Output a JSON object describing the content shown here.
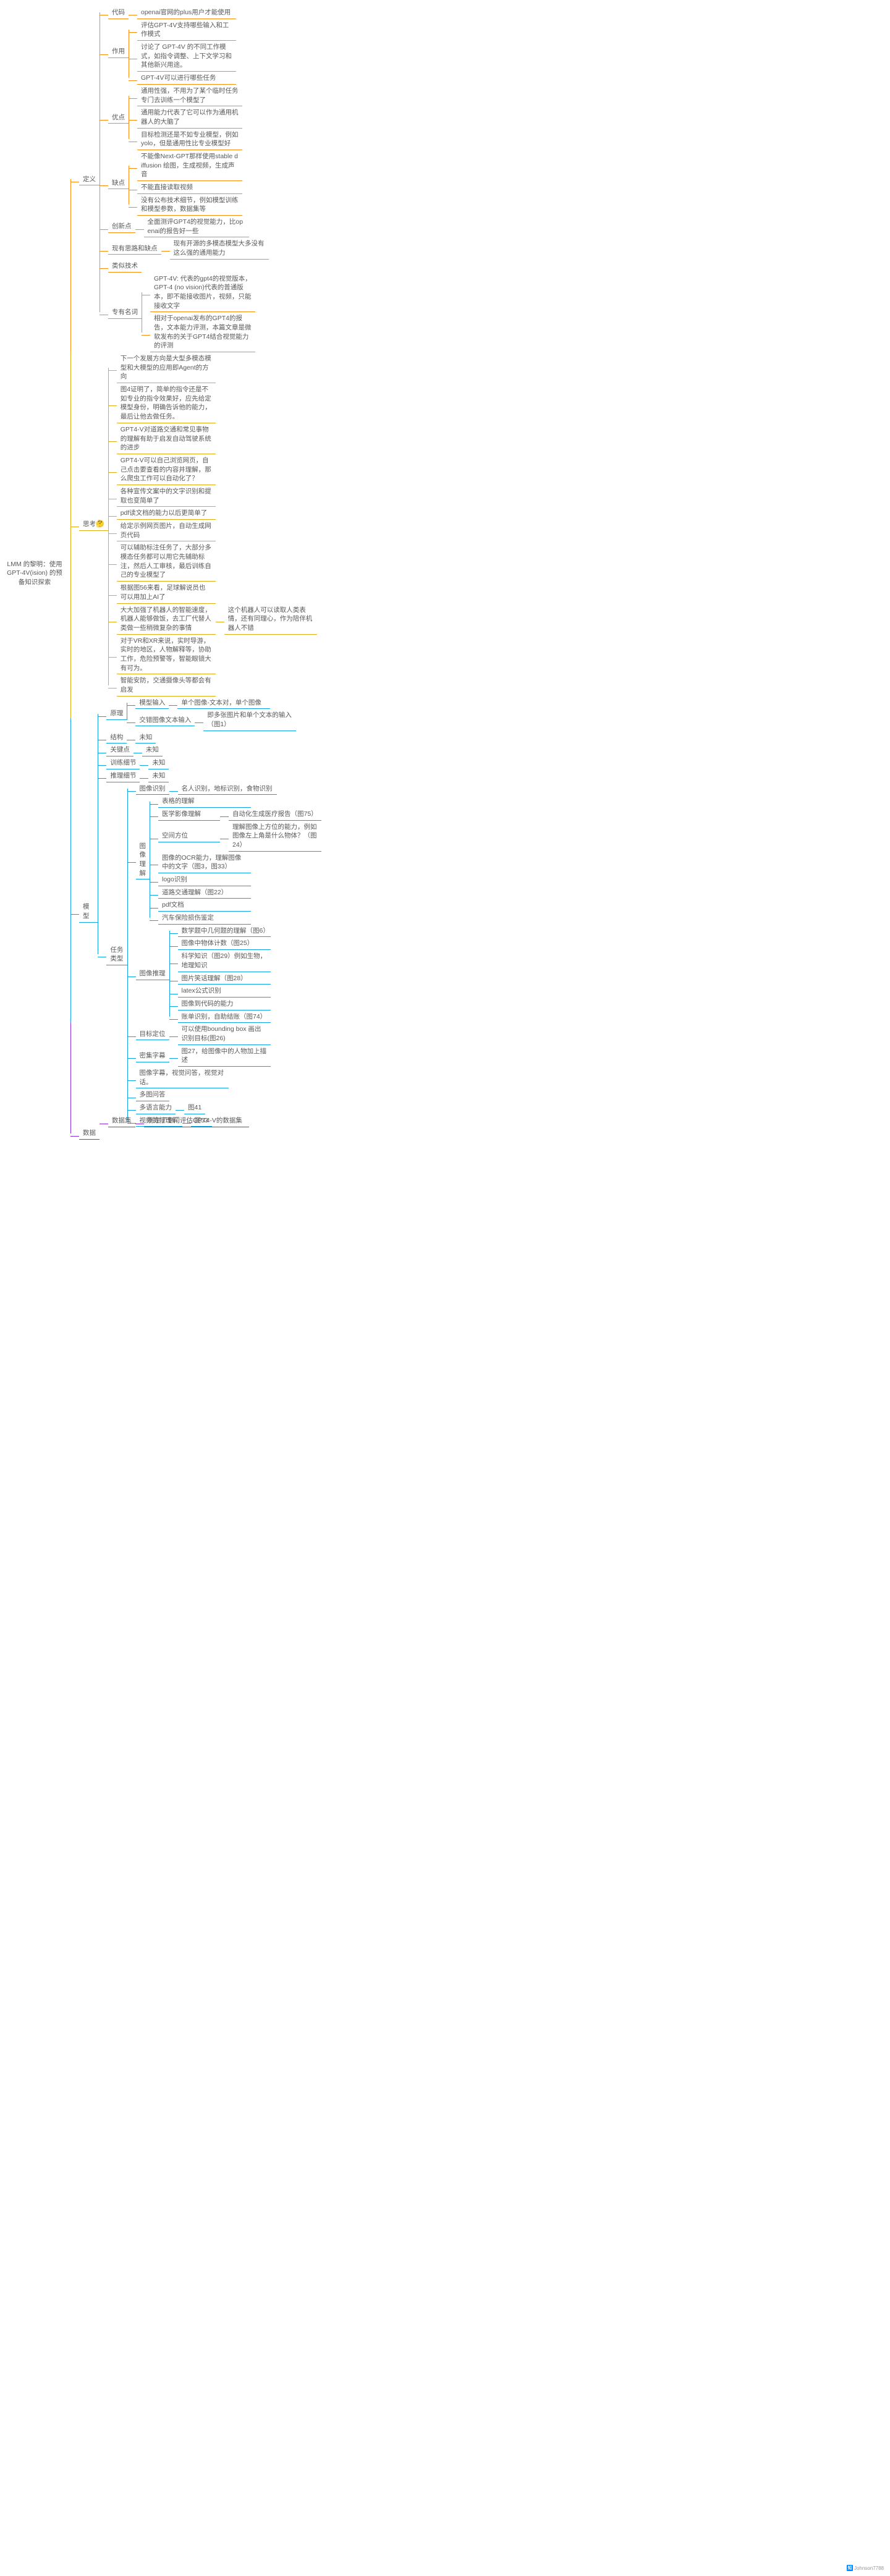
{
  "root": "LMM 的黎明：使用GPT-4V(ision) 的预备知识探索",
  "colors": {
    "orange": "#fd8c0c",
    "yellow": "#e0ae12",
    "blue": "#0ea4e3",
    "purple": "#8a2be2",
    "text": "#595959",
    "bg": "#ffffff"
  },
  "attribution": {
    "platform": "知乎",
    "author": "Johnson7788"
  },
  "b1": {
    "label": "定义",
    "daima": {
      "l": "代码",
      "c1": "openai官网的plus用户才能使用"
    },
    "zuoyong": {
      "l": "作用",
      "c": [
        "评估GPT-4V支持哪些输入和工作模式",
        "讨论了 GPT-4V 的不同工作模式，如指令调整、上下文学习和其他新兴用途。",
        "GPT-4V可以进行哪些任务"
      ]
    },
    "youdian": {
      "l": "优点",
      "c": [
        "通用性强，不用为了某个临时任务专门去训练一个模型了",
        "通用能力代表了它可以作为通用机器人的大脑了",
        "目标检测还是不如专业模型，例如yolo，但是通用性比专业模型好"
      ]
    },
    "quedian": {
      "l": "缺点",
      "c": [
        "不能像Next-GPT那样使用stable diffusion 绘图，生成视频，生成声音",
        "不能直接读取视频",
        "没有公布技术细节，例如模型训练和模型参数，数据集等"
      ]
    },
    "chuangxin": {
      "l": "创新点",
      "c1": "全面测评GPT4的视觉能力，比openai的报告好一些"
    },
    "xianyou": {
      "l": "现有思路和缺点",
      "c1": "现有开源的多模态模型大多没有这么强的通用能力"
    },
    "leisi": {
      "l": "类似技术"
    },
    "zhuanyou": {
      "l": "专有名词",
      "c": [
        "GPT-4V: 代表的gpt4的视觉版本，GPT-4 (no vision)代表的普通版本，即不能接收图片，视频，只能接收文字",
        "相对于openai发布的GPT4的报告，文本能力评测，本篇文章是微软发布的关于GPT4结合视觉能力的评测"
      ]
    }
  },
  "b2": {
    "label": "思考",
    "emoji": "🤔",
    "c": [
      "下一个发展方向是大型多模态模型和大模型的应用即Agent的方向",
      "图4证明了，简单的指令还是不如专业的指令效果好，应先给定模型身份，明确告诉他的能力，最后让他去做任务。",
      "GPT4-V对道路交通和常见事物的理解有助于启发自动驾驶系统的进步",
      "GPT4-V可以自己浏览网页，自己点击要查看的内容并理解，那么爬虫工作可以自动化了？",
      "各种宣传文案中的文字识别和提取也变简单了",
      "pdf读文档的能力以后更简单了",
      "给定示例网页图片，自动生成网页代码",
      "可以辅助标注任务了，大部分多模态任务都可以用它先辅助标注，然后人工审核，最后训练自己的专业模型了",
      "根据图56来看，足球解说员也可以用加上AI了",
      "大大加强了机器人的智能速度，机器人能够做饭，去工厂代替人类做一些稍微复杂的事情",
      "对于VR和XR来说，实时导游，实时的地区，人物解释等，协助工作，危险预警等，智能眼镜大有可为。",
      "智能安防，交通摄像头等都会有启发"
    ],
    "sub10": "这个机器人可以读取人类表情，还有同理心，作为陪伴机器人不错"
  },
  "b3": {
    "label": "模型",
    "yuanli": {
      "l": "原理",
      "moxing": {
        "l": "模型输入",
        "c1": "单个图像-文本对，单个图像"
      },
      "jiaocuo": {
        "l": "交错图像文本输入",
        "c1": "即多张图片和单个文本的输入（图1）"
      }
    },
    "jiegou": {
      "l": "结构",
      "v": "未知"
    },
    "guanjian": {
      "l": "关键点",
      "v": "未知"
    },
    "xunlian": {
      "l": "训练细节",
      "v": "未知"
    },
    "tuili": {
      "l": "推理细节",
      "v": "未知"
    },
    "renwu": {
      "l": "任务类型",
      "tuxiangshibie": {
        "l": "图像识别",
        "c1": "名人识别，地标识别，食物识别"
      },
      "tuxianglijie": {
        "l": "图像理解",
        "c": [
          "表格的理解",
          "医学影像理解",
          "空间方位",
          "图像的OCR能力，理解图像中的文字（图3，图33）",
          "logo识别",
          "道路交通理解（图22）",
          "pdf文档",
          "汽车保险损伤鉴定"
        ],
        "sub2": "自动化生成医疗报告（图75）",
        "sub3": "理解图像上方位的能力，例如图像左上角是什么物体？（图24）"
      },
      "tuxiangtuili": {
        "l": "图像推理",
        "c": [
          "数学题中几何题的理解（图6）",
          "图像中物体计数（图25）",
          "科学知识（图29）例如生物，地理知识",
          "图片笑话理解（图28）",
          "latex公式识别",
          "图像到代码的能力",
          "账单识别，自助结账（图74）"
        ]
      },
      "mubiao": {
        "l": "目标定位",
        "c1": "可以使用bounding box 画出识别目标(图26)"
      },
      "miji": {
        "l": "密集字幕",
        "c1": "图27，给图像中的人物加上描述"
      },
      "tuxiangzimu": {
        "l": "图像字幕，视觉问答，视觉对话。"
      },
      "duotu": {
        "l": "多图问答"
      },
      "duoyuyan": {
        "l": "多语言能力",
        "c1": "图41"
      },
      "shipin": {
        "l": "视频的帧理解",
        "c1": "图53"
      }
    }
  },
  "b4": {
    "label": "数据",
    "shujvji": {
      "l": "数据集",
      "c1": "制定了专门评估GPT4-V的数据集"
    }
  }
}
